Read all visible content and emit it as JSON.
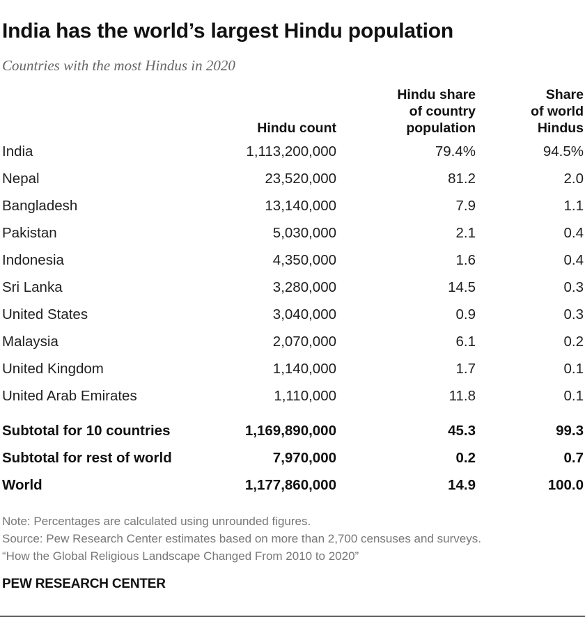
{
  "chart_data": {
    "type": "table",
    "title": "India has the world’s largest Hindu population",
    "subtitle": "Countries with the most Hindus in 2020",
    "columns": [
      {
        "key": "country",
        "label": ""
      },
      {
        "key": "count",
        "label": "Hindu count"
      },
      {
        "key": "share_country",
        "label": "Hindu share\nof country\npopulation"
      },
      {
        "key": "share_world",
        "label": "Share\nof world\nHindus"
      }
    ],
    "rows": [
      {
        "country": "India",
        "count": "1,113,200,000",
        "share_country": "79.4%",
        "share_world": "94.5%"
      },
      {
        "country": "Nepal",
        "count": "23,520,000",
        "share_country": "81.2",
        "share_world": "2.0"
      },
      {
        "country": "Bangladesh",
        "count": "13,140,000",
        "share_country": "7.9",
        "share_world": "1.1"
      },
      {
        "country": "Pakistan",
        "count": "5,030,000",
        "share_country": "2.1",
        "share_world": "0.4"
      },
      {
        "country": "Indonesia",
        "count": "4,350,000",
        "share_country": "1.6",
        "share_world": "0.4"
      },
      {
        "country": "Sri Lanka",
        "count": "3,280,000",
        "share_country": "14.5",
        "share_world": "0.3"
      },
      {
        "country": "United States",
        "count": "3,040,000",
        "share_country": "0.9",
        "share_world": "0.3"
      },
      {
        "country": "Malaysia",
        "count": "2,070,000",
        "share_country": "6.1",
        "share_world": "0.2"
      },
      {
        "country": "United Kingdom",
        "count": "1,140,000",
        "share_country": "1.7",
        "share_world": "0.1"
      },
      {
        "country": "United Arab Emirates",
        "count": "1,110,000",
        "share_country": "11.8",
        "share_world": "0.1"
      }
    ],
    "summary_rows": [
      {
        "country": "Subtotal for 10 countries",
        "count": "1,169,890,000",
        "share_country": "45.3",
        "share_world": "99.3"
      },
      {
        "country": "Subtotal for rest of world",
        "count": "7,970,000",
        "share_country": "0.2",
        "share_world": "0.7"
      },
      {
        "country": "World",
        "count": "1,177,860,000",
        "share_country": "14.9",
        "share_world": "100.0"
      }
    ]
  },
  "notes": {
    "note": "Note: Percentages are calculated using unrounded figures.",
    "source": "Source: Pew Research Center estimates based on more than 2,700 censuses and surveys.",
    "report": "“How the Global Religious Landscape Changed From 2010 to 2020”"
  },
  "brand": "PEW RESEARCH CENTER",
  "colors": {
    "text": "#1a1a1a",
    "muted": "#777777",
    "subtitle": "#666666",
    "rule": "#5a5a5a"
  }
}
